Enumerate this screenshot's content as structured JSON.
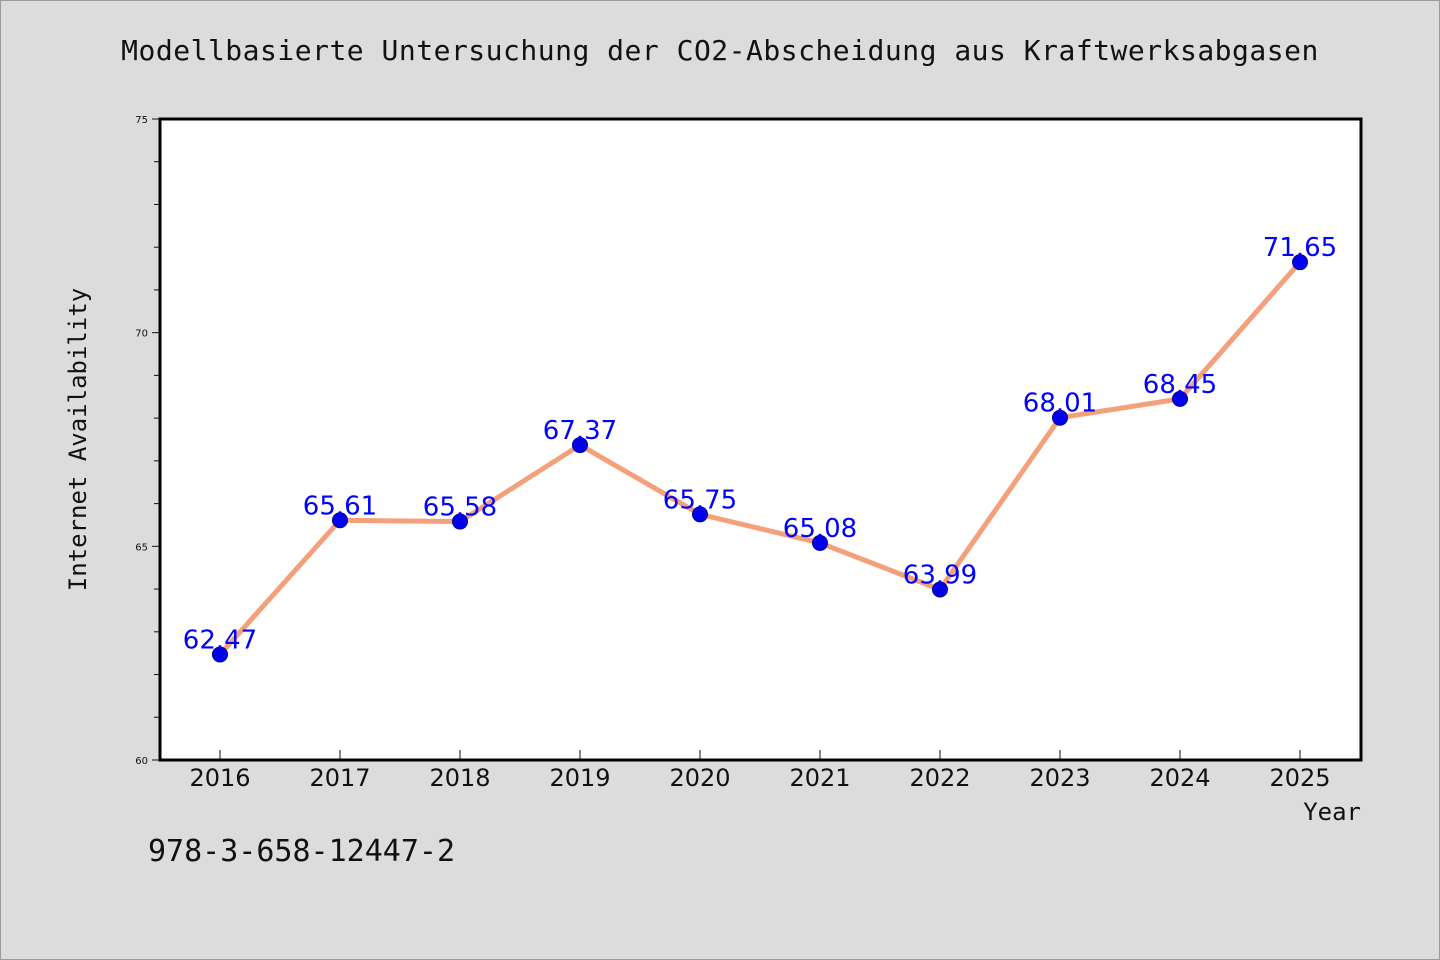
{
  "chart_data": {
    "type": "line",
    "title": "Modellbasierte Untersuchung der CO2-Abscheidung aus Kraftwerksabgasen",
    "xlabel": "Year",
    "ylabel": "Internet Availability",
    "categories": [
      "2016",
      "2017",
      "2018",
      "2019",
      "2020",
      "2021",
      "2022",
      "2023",
      "2024",
      "2025"
    ],
    "series": [
      {
        "values": [
          62.47,
          65.61,
          65.58,
          67.37,
          65.75,
          65.08,
          63.99,
          68.01,
          68.45,
          71.65
        ],
        "labels": [
          "62.47",
          "65.61",
          "65.58",
          "67.37",
          "65.75",
          "65.08",
          "63.99",
          "68.01",
          "68.45",
          "71.65"
        ]
      }
    ],
    "ylim": [
      60,
      75
    ],
    "yticks": [
      "60",
      "65",
      "70",
      "75"
    ],
    "y_minor_step": 1,
    "grid": false,
    "legend": "none",
    "colors": {
      "line": "#f4a07a",
      "marker": "#0000ee",
      "data_label": "#0000ff",
      "background": "#dcdcdc",
      "plot_background": "#ffffff"
    }
  },
  "footer": {
    "isbn": "978-3-658-12447-2"
  }
}
